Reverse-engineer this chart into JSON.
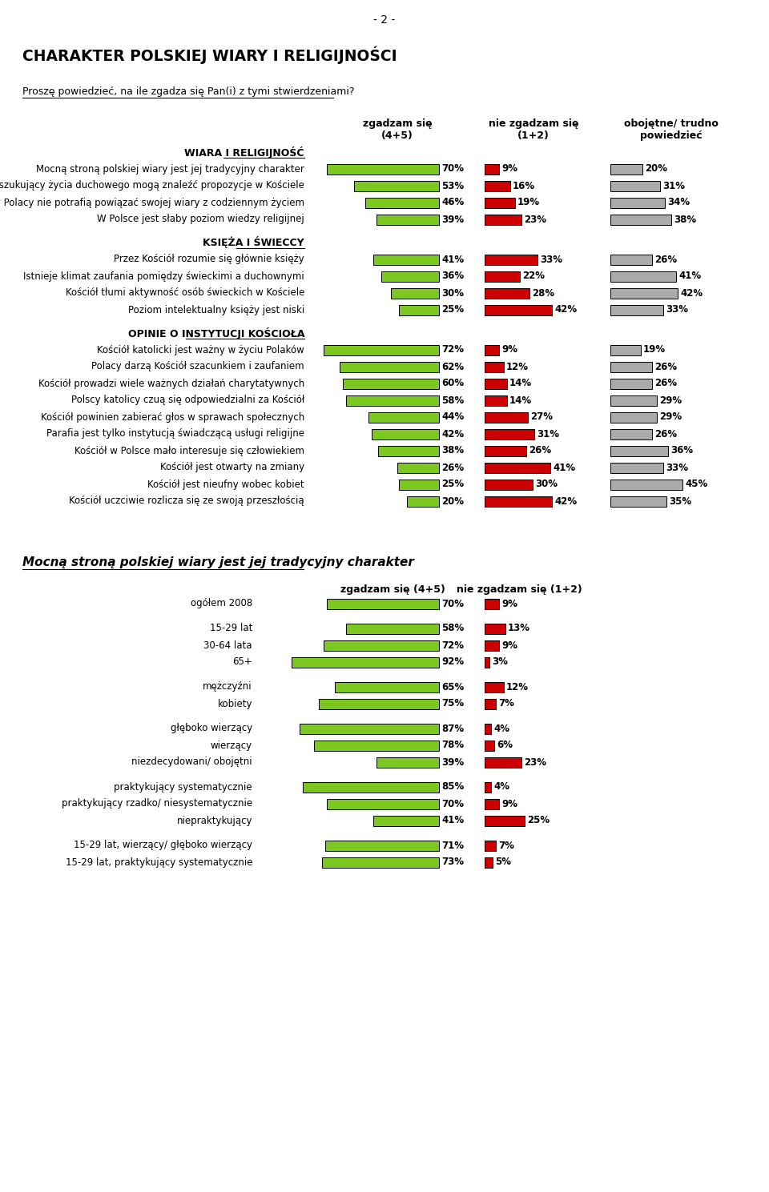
{
  "page_number": "- 2 -",
  "main_title": "CHARAKTER POLSKIEJ WIARY I RELIGIJNOŚCI",
  "subtitle": "Proszę powiedzieć, na ile zgadza się Pan(i) z tymi stwierdzeniami?",
  "sections": [
    {
      "title": "WIARA I RELIGIJNOŚĆ",
      "rows": [
        {
          "label": "Mocną stroną polskiej wiary jest jej tradycyjny charakter",
          "agree": 70,
          "disagree": 9,
          "neutral": 20
        },
        {
          "label": "Poszukujący życia duchowego mogą znaleźć propozycje w Kościele",
          "agree": 53,
          "disagree": 16,
          "neutral": 31
        },
        {
          "label": "Wierzący Polacy nie potrafią powiązać swojej wiary z codziennym życiem",
          "agree": 46,
          "disagree": 19,
          "neutral": 34
        },
        {
          "label": "W Polsce jest słaby poziom wiedzy religijnej",
          "agree": 39,
          "disagree": 23,
          "neutral": 38
        }
      ]
    },
    {
      "title": "KSIĘŻA I ŚWIECCY",
      "rows": [
        {
          "label": "Przez Kościół rozumie się głównie księży",
          "agree": 41,
          "disagree": 33,
          "neutral": 26
        },
        {
          "label": "Istnieje klimat zaufania pomiędzy świeckimi a duchownymi",
          "agree": 36,
          "disagree": 22,
          "neutral": 41
        },
        {
          "label": "Kościół tłumi aktywność osób świeckich w Kościele",
          "agree": 30,
          "disagree": 28,
          "neutral": 42
        },
        {
          "label": "Poziom intelektualny księży jest niski",
          "agree": 25,
          "disagree": 42,
          "neutral": 33
        }
      ]
    },
    {
      "title": "OPINIE O INSTYTUCJI KOŚCIOŁA",
      "rows": [
        {
          "label": "Kościół katolicki jest ważny w życiu Polaków",
          "agree": 72,
          "disagree": 9,
          "neutral": 19
        },
        {
          "label": "Polacy darzą Kościół szacunkiem i zaufaniem",
          "agree": 62,
          "disagree": 12,
          "neutral": 26
        },
        {
          "label": "Kościół prowadzi wiele ważnych działań charytatywnych",
          "agree": 60,
          "disagree": 14,
          "neutral": 26
        },
        {
          "label": "Polscy katolicy czuą się odpowiedzialni za Kościół",
          "agree": 58,
          "disagree": 14,
          "neutral": 29
        },
        {
          "label": "Kościół powinien zabierać głos w sprawach społecznych",
          "agree": 44,
          "disagree": 27,
          "neutral": 29
        },
        {
          "label": "Parafia jest tylko instytucją świadczącą usługi religijne",
          "agree": 42,
          "disagree": 31,
          "neutral": 26
        },
        {
          "label": "Kościół w Polsce mało interesuje się człowiekiem",
          "agree": 38,
          "disagree": 26,
          "neutral": 36
        },
        {
          "label": "Kościół jest otwarty na zmiany",
          "agree": 26,
          "disagree": 41,
          "neutral": 33
        },
        {
          "label": "Kościół jest nieufny wobec kobiet",
          "agree": 25,
          "disagree": 30,
          "neutral": 45
        },
        {
          "label": "Kościół uczciwie rozlicza się ze swoją przeszłością",
          "agree": 20,
          "disagree": 42,
          "neutral": 35
        }
      ]
    }
  ],
  "section2_title": "Mocną stroną polskiej wiary jest jej tradycyjny charakter",
  "section2_rows": [
    {
      "label": "ogółem 2008",
      "agree": 70,
      "disagree": 9,
      "gap": false
    },
    {
      "label": "",
      "agree": null,
      "disagree": null,
      "gap": true
    },
    {
      "label": "15-29 lat",
      "agree": 58,
      "disagree": 13,
      "gap": false
    },
    {
      "label": "30-64 lata",
      "agree": 72,
      "disagree": 9,
      "gap": false
    },
    {
      "label": "65+",
      "agree": 92,
      "disagree": 3,
      "gap": false
    },
    {
      "label": "",
      "agree": null,
      "disagree": null,
      "gap": true
    },
    {
      "label": "mężczyźni",
      "agree": 65,
      "disagree": 12,
      "gap": false
    },
    {
      "label": "kobiety",
      "agree": 75,
      "disagree": 7,
      "gap": false
    },
    {
      "label": "",
      "agree": null,
      "disagree": null,
      "gap": true
    },
    {
      "label": "głęboko wierzący",
      "agree": 87,
      "disagree": 4,
      "gap": false
    },
    {
      "label": "wierzący",
      "agree": 78,
      "disagree": 6,
      "gap": false
    },
    {
      "label": "niezdecydowani/ obojętni",
      "agree": 39,
      "disagree": 23,
      "gap": false
    },
    {
      "label": "",
      "agree": null,
      "disagree": null,
      "gap": true
    },
    {
      "label": "praktykujący systematycznie",
      "agree": 85,
      "disagree": 4,
      "gap": false
    },
    {
      "label": "praktykujący rzadko/ niesystematycznie",
      "agree": 70,
      "disagree": 9,
      "gap": false
    },
    {
      "label": "niepraktykujący",
      "agree": 41,
      "disagree": 25,
      "gap": false
    },
    {
      "label": "",
      "agree": null,
      "disagree": null,
      "gap": true
    },
    {
      "label": "15-29 lat, wierzący/ głęboko wierzący",
      "agree": 71,
      "disagree": 7,
      "gap": false
    },
    {
      "label": "15-29 lat, praktykujący systematycznie",
      "agree": 73,
      "disagree": 5,
      "gap": false
    }
  ],
  "green_color": "#7CC720",
  "red_color": "#CC0000",
  "gray_color": "#AAAAAA"
}
